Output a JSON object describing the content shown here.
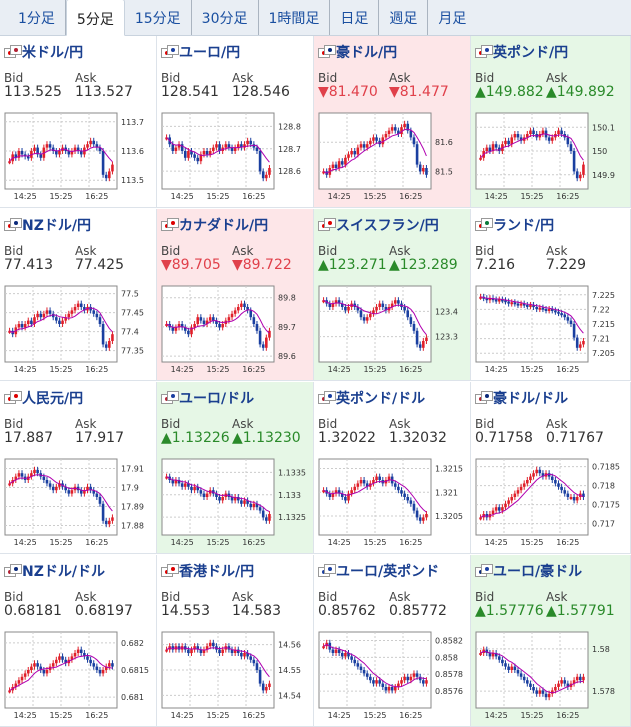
{
  "tabs": [
    {
      "label": "1分足",
      "active": false
    },
    {
      "label": "5分足",
      "active": true
    },
    {
      "label": "15分足",
      "active": false
    },
    {
      "label": "30分足",
      "active": false
    },
    {
      "label": "1時間足",
      "active": false
    },
    {
      "label": "日足",
      "active": false
    },
    {
      "label": "週足",
      "active": false
    },
    {
      "label": "月足",
      "active": false
    }
  ],
  "labels": {
    "bid": "Bid",
    "ask": "Ask"
  },
  "colors": {
    "up_bg": "#e6f7e6",
    "down_bg": "#fde6e8",
    "up_text": "#2a8a2a",
    "down_text": "#e0404a",
    "candle_up": "#e0202a",
    "candle_down": "#1a3fa0",
    "ma": "#b000b0",
    "ma2": "#33aaee"
  },
  "cells": [
    {
      "name": "米ドル/円",
      "bid": "113.525",
      "ask": "113.527",
      "trend": "",
      "flags": [
        "us",
        "jp"
      ],
      "x_ticks": [
        "14:25",
        "15:25",
        "16:25"
      ],
      "y_ticks": [
        "113.7",
        "113.6",
        "113.5"
      ],
      "y_range": [
        113.47,
        113.73
      ],
      "path": [
        0.35,
        0.45,
        0.4,
        0.5,
        0.45,
        0.42,
        0.4,
        0.5,
        0.55,
        0.45,
        0.4,
        0.55,
        0.6,
        0.55,
        0.5,
        0.45,
        0.5,
        0.55,
        0.5,
        0.45,
        0.5,
        0.55,
        0.5,
        0.45,
        0.55,
        0.6,
        0.65,
        0.6,
        0.55,
        0.5,
        0.15,
        0.1,
        0.2,
        0.3
      ]
    },
    {
      "name": "ユーロ/円",
      "bid": "128.541",
      "ask": "128.546",
      "trend": "",
      "flags": [
        "eu",
        "jp"
      ],
      "x_ticks": [
        "14:25",
        "15:25",
        "16:25"
      ],
      "y_ticks": [
        "128.8",
        "128.7",
        "128.6"
      ],
      "y_range": [
        128.52,
        128.86
      ],
      "path": [
        0.7,
        0.6,
        0.5,
        0.55,
        0.6,
        0.5,
        0.4,
        0.5,
        0.45,
        0.4,
        0.35,
        0.45,
        0.5,
        0.45,
        0.5,
        0.55,
        0.6,
        0.5,
        0.55,
        0.6,
        0.55,
        0.5,
        0.55,
        0.6,
        0.55,
        0.6,
        0.65,
        0.6,
        0.55,
        0.5,
        0.2,
        0.1,
        0.15,
        0.25
      ]
    },
    {
      "name": "豪ドル/円",
      "bid": "81.470",
      "ask": "81.477",
      "trend": "down",
      "flags": [
        "au",
        "jp"
      ],
      "x_ticks": [
        "14:25",
        "15:25",
        "16:25"
      ],
      "y_ticks": [
        "81.6",
        "81.5"
      ],
      "y_range": [
        81.44,
        81.7
      ],
      "path": [
        0.2,
        0.15,
        0.25,
        0.3,
        0.25,
        0.35,
        0.3,
        0.4,
        0.45,
        0.5,
        0.45,
        0.55,
        0.6,
        0.55,
        0.6,
        0.65,
        0.7,
        0.65,
        0.6,
        0.7,
        0.75,
        0.8,
        0.85,
        0.8,
        0.75,
        0.85,
        0.9,
        0.8,
        0.7,
        0.6,
        0.3,
        0.2,
        0.25,
        0.15
      ]
    },
    {
      "name": "英ポンド/円",
      "bid": "149.882",
      "ask": "149.892",
      "trend": "up",
      "flags": [
        "gb",
        "jp"
      ],
      "x_ticks": [
        "14:25",
        "15:25",
        "16:25"
      ],
      "y_ticks": [
        "150.1",
        "150",
        "149.9"
      ],
      "y_range": [
        149.84,
        150.16
      ],
      "path": [
        0.4,
        0.5,
        0.55,
        0.5,
        0.6,
        0.55,
        0.5,
        0.6,
        0.65,
        0.6,
        0.7,
        0.75,
        0.7,
        0.65,
        0.7,
        0.75,
        0.8,
        0.75,
        0.7,
        0.75,
        0.8,
        0.7,
        0.65,
        0.7,
        0.75,
        0.8,
        0.75,
        0.7,
        0.6,
        0.5,
        0.2,
        0.1,
        0.15,
        0.3
      ]
    },
    {
      "name": "NZドル/円",
      "bid": "77.413",
      "ask": "77.425",
      "trend": "",
      "flags": [
        "nz",
        "jp"
      ],
      "x_ticks": [
        "14:25",
        "15:25",
        "16:25"
      ],
      "y_ticks": [
        "77.5",
        "77.45",
        "77.4",
        "77.35"
      ],
      "y_range": [
        77.32,
        77.52
      ],
      "path": [
        0.4,
        0.35,
        0.45,
        0.5,
        0.45,
        0.5,
        0.55,
        0.5,
        0.6,
        0.65,
        0.6,
        0.65,
        0.7,
        0.65,
        0.6,
        0.55,
        0.5,
        0.55,
        0.6,
        0.65,
        0.7,
        0.75,
        0.8,
        0.75,
        0.7,
        0.75,
        0.7,
        0.65,
        0.6,
        0.5,
        0.2,
        0.15,
        0.25,
        0.35
      ]
    },
    {
      "name": "カナダドル/円",
      "bid": "89.705",
      "ask": "89.722",
      "trend": "down",
      "flags": [
        "ca",
        "jp"
      ],
      "x_ticks": [
        "14:25",
        "15:25",
        "16:25"
      ],
      "y_ticks": [
        "89.8",
        "89.7",
        "89.6"
      ],
      "y_range": [
        89.58,
        89.84
      ],
      "path": [
        0.5,
        0.45,
        0.4,
        0.45,
        0.5,
        0.45,
        0.4,
        0.35,
        0.45,
        0.5,
        0.6,
        0.55,
        0.5,
        0.55,
        0.6,
        0.55,
        0.5,
        0.45,
        0.5,
        0.55,
        0.6,
        0.65,
        0.7,
        0.75,
        0.8,
        0.75,
        0.7,
        0.6,
        0.5,
        0.4,
        0.2,
        0.15,
        0.3,
        0.4
      ]
    },
    {
      "name": "スイスフラン/円",
      "bid": "123.271",
      "ask": "123.289",
      "trend": "up",
      "flags": [
        "ch",
        "jp"
      ],
      "x_ticks": [
        "14:25",
        "15:25",
        "16:25"
      ],
      "y_ticks": [
        "123.4",
        "123.3"
      ],
      "y_range": [
        123.2,
        123.5
      ],
      "path": [
        0.85,
        0.8,
        0.75,
        0.8,
        0.85,
        0.8,
        0.75,
        0.7,
        0.75,
        0.8,
        0.75,
        0.7,
        0.6,
        0.55,
        0.6,
        0.65,
        0.7,
        0.75,
        0.8,
        0.75,
        0.7,
        0.75,
        0.8,
        0.85,
        0.8,
        0.75,
        0.7,
        0.6,
        0.5,
        0.4,
        0.2,
        0.15,
        0.25,
        0.3
      ]
    },
    {
      "name": "ランド/円",
      "bid": "7.216",
      "ask": "7.229",
      "trend": "",
      "flags": [
        "za",
        "jp"
      ],
      "x_ticks": [
        "14:25",
        "15:25",
        "16:25"
      ],
      "y_ticks": [
        "7.225",
        "7.22",
        "7.215",
        "7.21",
        "7.205"
      ],
      "y_range": [
        7.202,
        7.228
      ],
      "path": [
        0.9,
        0.88,
        0.85,
        0.88,
        0.86,
        0.84,
        0.86,
        0.85,
        0.83,
        0.8,
        0.82,
        0.8,
        0.78,
        0.8,
        0.78,
        0.76,
        0.78,
        0.75,
        0.72,
        0.74,
        0.72,
        0.7,
        0.72,
        0.7,
        0.68,
        0.66,
        0.64,
        0.6,
        0.55,
        0.5,
        0.3,
        0.15,
        0.2,
        0.25
      ]
    },
    {
      "name": "人民元/円",
      "bid": "17.887",
      "ask": "17.917",
      "trend": "",
      "flags": [
        "cn",
        "jp"
      ],
      "x_ticks": [
        "14:25",
        "15:25",
        "16:25"
      ],
      "y_ticks": [
        "17.91",
        "17.9",
        "17.89",
        "17.88"
      ],
      "y_range": [
        17.875,
        17.915
      ],
      "path": [
        0.7,
        0.75,
        0.8,
        0.85,
        0.8,
        0.75,
        0.8,
        0.85,
        0.9,
        0.85,
        0.8,
        0.75,
        0.7,
        0.65,
        0.6,
        0.65,
        0.7,
        0.65,
        0.6,
        0.55,
        0.6,
        0.65,
        0.6,
        0.55,
        0.6,
        0.65,
        0.6,
        0.55,
        0.5,
        0.4,
        0.15,
        0.1,
        0.15,
        0.2
      ]
    },
    {
      "name": "ユーロ/ドル",
      "bid": "1.13226",
      "ask": "1.13230",
      "trend": "up",
      "flags": [
        "eu",
        "us"
      ],
      "x_ticks": [
        "14:25",
        "15:25",
        "16:25"
      ],
      "y_ticks": [
        "1.1335",
        "1.133",
        "1.1325"
      ],
      "y_range": [
        1.1321,
        1.1338
      ],
      "path": [
        0.8,
        0.75,
        0.7,
        0.75,
        0.7,
        0.65,
        0.7,
        0.65,
        0.6,
        0.65,
        0.6,
        0.55,
        0.5,
        0.55,
        0.6,
        0.55,
        0.5,
        0.45,
        0.5,
        0.55,
        0.5,
        0.45,
        0.5,
        0.45,
        0.4,
        0.45,
        0.4,
        0.35,
        0.4,
        0.35,
        0.3,
        0.2,
        0.15,
        0.25
      ]
    },
    {
      "name": "英ポンド/ドル",
      "bid": "1.32022",
      "ask": "1.32032",
      "trend": "",
      "flags": [
        "gb",
        "us"
      ],
      "x_ticks": [
        "14:25",
        "15:25",
        "16:25"
      ],
      "y_ticks": [
        "1.3215",
        "1.321",
        "1.3205"
      ],
      "y_range": [
        1.3201,
        1.3217
      ],
      "path": [
        0.6,
        0.55,
        0.5,
        0.55,
        0.6,
        0.55,
        0.5,
        0.45,
        0.55,
        0.6,
        0.65,
        0.7,
        0.75,
        0.7,
        0.65,
        0.7,
        0.75,
        0.8,
        0.75,
        0.7,
        0.75,
        0.8,
        0.7,
        0.65,
        0.6,
        0.55,
        0.5,
        0.45,
        0.4,
        0.3,
        0.2,
        0.15,
        0.2,
        0.25
      ]
    },
    {
      "name": "豪ドル/ドル",
      "bid": "0.71758",
      "ask": "0.71767",
      "trend": "",
      "flags": [
        "au",
        "us"
      ],
      "x_ticks": [
        "14:25",
        "15:25",
        "16:25"
      ],
      "y_ticks": [
        "0.7185",
        "0.718",
        "0.7175",
        "0.717"
      ],
      "y_range": [
        0.7167,
        0.7187
      ],
      "path": [
        0.2,
        0.25,
        0.2,
        0.25,
        0.3,
        0.35,
        0.3,
        0.35,
        0.4,
        0.45,
        0.5,
        0.55,
        0.6,
        0.65,
        0.7,
        0.75,
        0.8,
        0.85,
        0.9,
        0.85,
        0.8,
        0.85,
        0.8,
        0.75,
        0.7,
        0.65,
        0.6,
        0.55,
        0.5,
        0.5,
        0.45,
        0.5,
        0.55,
        0.5
      ]
    },
    {
      "name": "NZドル/ドル",
      "bid": "0.68181",
      "ask": "0.68197",
      "trend": "",
      "flags": [
        "nz",
        "us"
      ],
      "x_ticks": [
        "14:25",
        "15:25",
        "16:25"
      ],
      "y_ticks": [
        "0.682",
        "0.6815",
        "0.681"
      ],
      "y_range": [
        0.6808,
        0.6822
      ],
      "path": [
        0.2,
        0.25,
        0.3,
        0.35,
        0.4,
        0.45,
        0.5,
        0.55,
        0.6,
        0.55,
        0.5,
        0.45,
        0.5,
        0.55,
        0.6,
        0.65,
        0.7,
        0.65,
        0.6,
        0.65,
        0.7,
        0.75,
        0.8,
        0.75,
        0.7,
        0.65,
        0.6,
        0.55,
        0.5,
        0.45,
        0.5,
        0.55,
        0.6,
        0.55
      ]
    },
    {
      "name": "香港ドル/円",
      "bid": "14.553",
      "ask": "14.583",
      "trend": "",
      "flags": [
        "hk",
        "jp"
      ],
      "x_ticks": [
        "14:25",
        "15:25",
        "16:25"
      ],
      "y_ticks": [
        "14.56",
        "14.55",
        "14.54"
      ],
      "y_range": [
        14.535,
        14.565
      ],
      "path": [
        0.8,
        0.85,
        0.8,
        0.85,
        0.8,
        0.85,
        0.8,
        0.75,
        0.8,
        0.85,
        0.8,
        0.75,
        0.8,
        0.85,
        0.9,
        0.85,
        0.8,
        0.75,
        0.8,
        0.85,
        0.8,
        0.75,
        0.8,
        0.75,
        0.7,
        0.75,
        0.7,
        0.65,
        0.6,
        0.5,
        0.3,
        0.2,
        0.25,
        0.3
      ]
    },
    {
      "name": "ユーロ/英ポンド",
      "bid": "0.85762",
      "ask": "0.85772",
      "trend": "",
      "flags": [
        "eu",
        "gb"
      ],
      "x_ticks": [
        "14:25",
        "15:25",
        "16:25"
      ],
      "y_ticks": [
        "0.8582",
        "0.858",
        "0.8578",
        "0.8576"
      ],
      "y_range": [
        0.8574,
        0.8583
      ],
      "path": [
        0.85,
        0.9,
        0.8,
        0.75,
        0.8,
        0.75,
        0.7,
        0.75,
        0.7,
        0.65,
        0.6,
        0.55,
        0.5,
        0.45,
        0.4,
        0.35,
        0.3,
        0.35,
        0.3,
        0.25,
        0.2,
        0.25,
        0.2,
        0.25,
        0.3,
        0.35,
        0.4,
        0.35,
        0.4,
        0.45,
        0.4,
        0.35,
        0.3,
        0.35
      ]
    },
    {
      "name": "ユーロ/豪ドル",
      "bid": "1.57776",
      "ask": "1.57791",
      "trend": "up",
      "flags": [
        "eu",
        "au"
      ],
      "x_ticks": [
        "14:25",
        "15:25",
        "16:25"
      ],
      "y_ticks": [
        "1.58",
        "1.578"
      ],
      "y_range": [
        1.5772,
        1.5808
      ],
      "path": [
        0.75,
        0.8,
        0.75,
        0.7,
        0.75,
        0.7,
        0.65,
        0.6,
        0.55,
        0.5,
        0.55,
        0.5,
        0.45,
        0.4,
        0.35,
        0.3,
        0.25,
        0.2,
        0.15,
        0.2,
        0.15,
        0.1,
        0.15,
        0.2,
        0.25,
        0.3,
        0.35,
        0.3,
        0.25,
        0.3,
        0.35,
        0.4,
        0.35,
        0.4
      ]
    }
  ]
}
